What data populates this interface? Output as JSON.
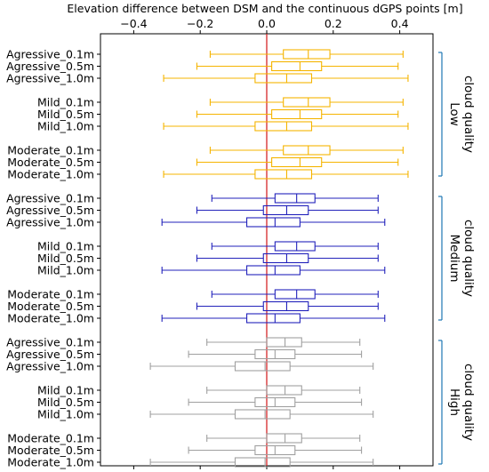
{
  "chart_data": {
    "type": "boxplot",
    "title": "Elevation difference between DSM and the continuous dGPS points [m]",
    "xlim": [
      -0.5,
      0.5
    ],
    "xticks": [
      -0.4,
      -0.2,
      0.0,
      0.2,
      0.4
    ],
    "xtick_labels": [
      "−0.4",
      "−0.2",
      "0.0",
      "0.2",
      "0.4"
    ],
    "orientation": "horizontal",
    "reference_line": {
      "x": 0,
      "color": "#d62728"
    },
    "groups": [
      {
        "name_lines": [
          "Low",
          "cloud quality"
        ],
        "color": "#f5b400",
        "rows": [
          {
            "label": "Agressive_0.1m",
            "whislo": -0.17,
            "q1": 0.05,
            "med": 0.125,
            "q3": 0.19,
            "whishi": 0.41
          },
          {
            "label": "Agressive_0.5m",
            "whislo": -0.21,
            "q1": 0.015,
            "med": 0.1,
            "q3": 0.165,
            "whishi": 0.395
          },
          {
            "label": "Agressive_1.0m",
            "whislo": -0.31,
            "q1": -0.035,
            "med": 0.06,
            "q3": 0.135,
            "whishi": 0.425
          },
          {
            "label": "Mild_0.1m",
            "whislo": -0.17,
            "q1": 0.05,
            "med": 0.125,
            "q3": 0.19,
            "whishi": 0.41
          },
          {
            "label": "Mild_0.5m",
            "whislo": -0.21,
            "q1": 0.015,
            "med": 0.1,
            "q3": 0.165,
            "whishi": 0.395
          },
          {
            "label": "Mild_1.0m",
            "whislo": -0.31,
            "q1": -0.035,
            "med": 0.06,
            "q3": 0.135,
            "whishi": 0.425
          },
          {
            "label": "Moderate_0.1m",
            "whislo": -0.17,
            "q1": 0.05,
            "med": 0.125,
            "q3": 0.19,
            "whishi": 0.41
          },
          {
            "label": "Moderate_0.5m",
            "whislo": -0.21,
            "q1": 0.015,
            "med": 0.1,
            "q3": 0.165,
            "whishi": 0.395
          },
          {
            "label": "Moderate_1.0m",
            "whislo": -0.31,
            "q1": -0.035,
            "med": 0.06,
            "q3": 0.135,
            "whishi": 0.425
          }
        ]
      },
      {
        "name_lines": [
          "Medium",
          "cloud quality"
        ],
        "color": "#2222bb",
        "rows": [
          {
            "label": "Agressive_0.1m",
            "whislo": -0.165,
            "q1": 0.025,
            "med": 0.09,
            "q3": 0.145,
            "whishi": 0.335
          },
          {
            "label": "Agressive_0.5m",
            "whislo": -0.21,
            "q1": -0.01,
            "med": 0.06,
            "q3": 0.125,
            "whishi": 0.335
          },
          {
            "label": "Agressive_1.0m",
            "whislo": -0.315,
            "q1": -0.06,
            "med": 0.025,
            "q3": 0.1,
            "whishi": 0.355
          },
          {
            "label": "Mild_0.1m",
            "whislo": -0.165,
            "q1": 0.025,
            "med": 0.09,
            "q3": 0.145,
            "whishi": 0.335
          },
          {
            "label": "Mild_0.5m",
            "whislo": -0.21,
            "q1": -0.01,
            "med": 0.06,
            "q3": 0.125,
            "whishi": 0.335
          },
          {
            "label": "Mild_1.0m",
            "whislo": -0.315,
            "q1": -0.06,
            "med": 0.025,
            "q3": 0.1,
            "whishi": 0.355
          },
          {
            "label": "Moderate_0.1m",
            "whislo": -0.165,
            "q1": 0.025,
            "med": 0.09,
            "q3": 0.145,
            "whishi": 0.335
          },
          {
            "label": "Moderate_0.5m",
            "whislo": -0.21,
            "q1": -0.01,
            "med": 0.06,
            "q3": 0.125,
            "whishi": 0.335
          },
          {
            "label": "Moderate_1.0m",
            "whislo": -0.315,
            "q1": -0.06,
            "med": 0.025,
            "q3": 0.1,
            "whishi": 0.355
          }
        ]
      },
      {
        "name_lines": [
          "High",
          "cloud quality"
        ],
        "color": "#a0a0a0",
        "rows": [
          {
            "label": "Agressive_0.1m",
            "whislo": -0.18,
            "q1": 0.0,
            "med": 0.055,
            "q3": 0.105,
            "whishi": 0.28
          },
          {
            "label": "Agressive_0.5m",
            "whislo": -0.235,
            "q1": -0.035,
            "med": 0.025,
            "q3": 0.085,
            "whishi": 0.285
          },
          {
            "label": "Agressive_1.0m",
            "whislo": -0.35,
            "q1": -0.095,
            "med": -0.005,
            "q3": 0.07,
            "whishi": 0.32
          },
          {
            "label": "Mild_0.1m",
            "whislo": -0.18,
            "q1": 0.0,
            "med": 0.055,
            "q3": 0.105,
            "whishi": 0.28
          },
          {
            "label": "Mild_0.5m",
            "whislo": -0.235,
            "q1": -0.035,
            "med": 0.025,
            "q3": 0.085,
            "whishi": 0.285
          },
          {
            "label": "Mild_1.0m",
            "whislo": -0.35,
            "q1": -0.095,
            "med": -0.005,
            "q3": 0.07,
            "whishi": 0.32
          },
          {
            "label": "Moderate_0.1m",
            "whislo": -0.18,
            "q1": 0.0,
            "med": 0.055,
            "q3": 0.105,
            "whishi": 0.28
          },
          {
            "label": "Moderate_0.5m",
            "whislo": -0.235,
            "q1": -0.035,
            "med": 0.025,
            "q3": 0.085,
            "whishi": 0.285
          },
          {
            "label": "Moderate_1.0m",
            "whislo": -0.35,
            "q1": -0.095,
            "med": -0.005,
            "q3": 0.07,
            "whishi": 0.32
          }
        ]
      }
    ],
    "bracket_color": "#1f77b4"
  }
}
